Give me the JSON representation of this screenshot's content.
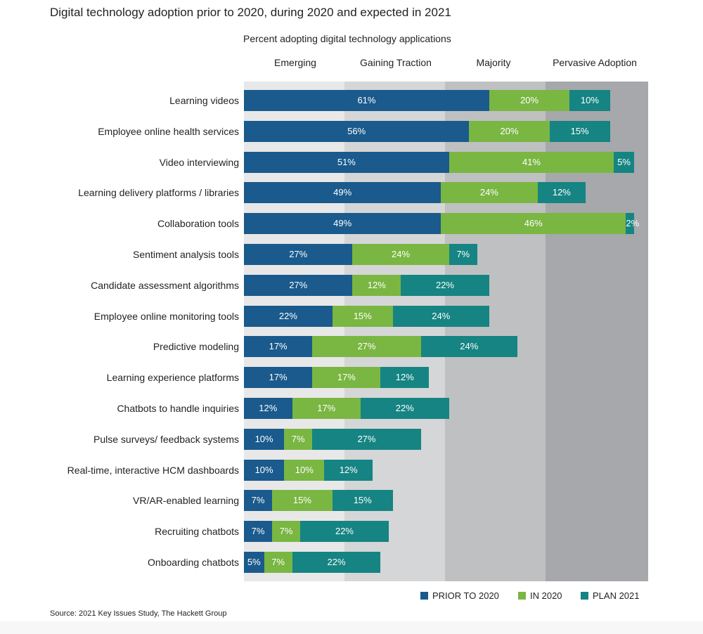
{
  "title": "Digital technology adoption prior to 2020, during 2020 and expected in 2021",
  "source": "Source: 2021 Key Issues Study, The Hackett Group",
  "colors": {
    "prior": "#1a5a8c",
    "in2020": "#7ab642",
    "plan2021": "#158482",
    "band1": "#e8e8e8",
    "band2": "#d5d6d7",
    "band3": "#bfc0c2",
    "band4": "#a6a8ab"
  },
  "chart_data": {
    "type": "bar",
    "orientation": "horizontal",
    "stacked": true,
    "subtitle": "Percent adopting digital technology applications",
    "bands": [
      "Emerging",
      "Gaining Traction",
      "Majority",
      "Pervasive Adoption"
    ],
    "xlim": [
      0,
      100
    ],
    "categories": [
      "Learning videos",
      "Employee online health services",
      "Video interviewing",
      "Learning delivery platforms / libraries",
      "Collaboration tools",
      "Sentiment analysis tools",
      "Candidate assessment algorithms",
      "Employee online monitoring tools",
      "Predictive modeling",
      "Learning experience platforms",
      "Chatbots to handle inquiries",
      "Pulse surveys/ feedback systems",
      "Real-time, interactive HCM dashboards",
      "VR/AR-enabled learning",
      "Recruiting chatbots",
      "Onboarding chatbots"
    ],
    "series": [
      {
        "name": "PRIOR TO 2020",
        "color": "#1a5a8c",
        "values": [
          61,
          56,
          51,
          49,
          49,
          27,
          27,
          22,
          17,
          17,
          12,
          10,
          10,
          7,
          7,
          5
        ]
      },
      {
        "name": "IN 2020",
        "color": "#7ab642",
        "values": [
          20,
          20,
          41,
          24,
          46,
          24,
          12,
          15,
          27,
          17,
          17,
          7,
          10,
          15,
          7,
          7
        ]
      },
      {
        "name": "PLAN 2021",
        "color": "#158482",
        "values": [
          10,
          15,
          5,
          12,
          2,
          7,
          22,
          24,
          24,
          12,
          22,
          27,
          12,
          15,
          22,
          22
        ]
      }
    ],
    "legend_position": "bottom-right"
  }
}
